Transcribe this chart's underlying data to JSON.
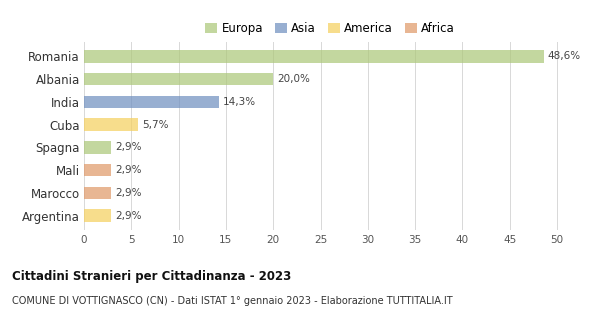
{
  "categories": [
    "Romania",
    "Albania",
    "India",
    "Cuba",
    "Spagna",
    "Mali",
    "Marocco",
    "Argentina"
  ],
  "values": [
    48.6,
    20.0,
    14.3,
    5.7,
    2.9,
    2.9,
    2.9,
    2.9
  ],
  "labels": [
    "48,6%",
    "20,0%",
    "14,3%",
    "5,7%",
    "2,9%",
    "2,9%",
    "2,9%",
    "2,9%"
  ],
  "colors": [
    "#adc87a",
    "#adc87a",
    "#7090c0",
    "#f5d060",
    "#adc87a",
    "#e09a6a",
    "#e09a6a",
    "#f5d060"
  ],
  "legend": [
    {
      "label": "Europa",
      "color": "#adc87a"
    },
    {
      "label": "Asia",
      "color": "#7090c0"
    },
    {
      "label": "America",
      "color": "#f5d060"
    },
    {
      "label": "Africa",
      "color": "#e09a6a"
    }
  ],
  "xlim": [
    0,
    52
  ],
  "xticks": [
    0,
    5,
    10,
    15,
    20,
    25,
    30,
    35,
    40,
    45,
    50
  ],
  "title": "Cittadini Stranieri per Cittadinanza - 2023",
  "subtitle": "COMUNE DI VOTTIGNASCO (CN) - Dati ISTAT 1° gennaio 2023 - Elaborazione TUTTITALIA.IT",
  "bg_color": "#ffffff",
  "grid_color": "#d8d8d8",
  "bar_alpha": 0.72,
  "bar_height": 0.55
}
